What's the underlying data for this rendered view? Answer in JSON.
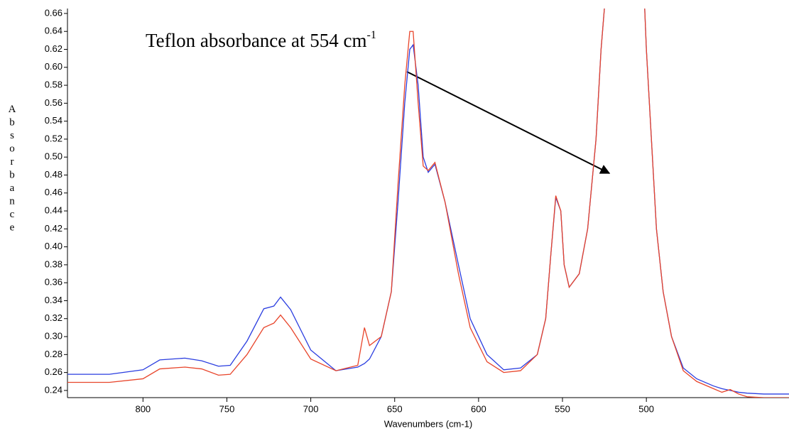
{
  "chart_data": {
    "type": "line",
    "annotation": "Teflon absorbance at 554 cm",
    "annotation_superscript": "-1",
    "xlabel": "Wavenumbers (cm-1)",
    "ylabel": "Absorbance",
    "x": [
      845,
      820,
      800,
      790,
      775,
      765,
      755,
      748,
      738,
      728,
      722,
      718,
      712,
      700,
      685,
      672,
      668,
      665,
      658,
      652,
      648,
      644,
      641,
      639,
      636,
      633,
      630,
      626,
      620,
      612,
      605,
      595,
      585,
      575,
      565,
      560,
      557,
      554,
      551,
      549,
      546,
      540,
      535,
      530,
      527,
      525,
      510,
      501,
      500,
      497,
      494,
      490,
      485,
      478,
      470,
      460,
      455,
      450,
      445,
      440,
      430,
      420,
      415
    ],
    "series": [
      {
        "color": "#2a3de0",
        "values": [
          0.258,
          0.258,
          0.263,
          0.274,
          0.276,
          0.273,
          0.267,
          0.268,
          0.295,
          0.331,
          0.334,
          0.344,
          0.33,
          0.285,
          0.262,
          0.266,
          0.27,
          0.275,
          0.3,
          0.35,
          0.45,
          0.56,
          0.62,
          0.625,
          0.58,
          0.5,
          0.483,
          0.492,
          0.45,
          0.38,
          0.32,
          0.28,
          0.263,
          0.265,
          0.28,
          0.32,
          0.39,
          0.455,
          0.44,
          0.38,
          0.355,
          0.37,
          0.42,
          0.52,
          0.62,
          0.666,
          null,
          0.666,
          0.62,
          0.52,
          0.42,
          0.35,
          0.3,
          0.265,
          0.253,
          0.245,
          0.242,
          0.24,
          0.238,
          0.237,
          0.236,
          0.236,
          0.236
        ]
      },
      {
        "color": "#e8442a",
        "values": [
          0.249,
          0.249,
          0.253,
          0.264,
          0.266,
          0.264,
          0.257,
          0.258,
          0.28,
          0.31,
          0.315,
          0.324,
          0.31,
          0.275,
          0.262,
          0.268,
          0.31,
          0.29,
          0.3,
          0.35,
          0.47,
          0.58,
          0.64,
          0.64,
          0.56,
          0.49,
          0.485,
          0.494,
          0.45,
          0.37,
          0.31,
          0.272,
          0.26,
          0.262,
          0.28,
          0.32,
          0.39,
          0.457,
          0.44,
          0.38,
          0.355,
          0.37,
          0.42,
          0.52,
          0.62,
          0.666,
          null,
          0.666,
          0.62,
          0.52,
          0.42,
          0.35,
          0.3,
          0.262,
          0.25,
          0.242,
          0.238,
          0.241,
          0.236,
          0.233,
          0.232,
          0.232,
          0.232
        ]
      }
    ],
    "xlim": [
      845,
      415
    ],
    "ylim": [
      0.232,
      0.6655
    ],
    "xticks": [
      800,
      750,
      700,
      650,
      600,
      550,
      500
    ],
    "yticks": [
      0.24,
      0.26,
      0.28,
      {
        "value": 0.3,
        "label": "0.30"
      },
      0.32,
      0.34,
      0.36,
      0.38,
      {
        "value": 0.4,
        "label": "0.40"
      },
      0.42,
      0.44,
      0.46,
      0.48,
      {
        "value": 0.5,
        "label": "0.50"
      },
      0.52,
      0.54,
      0.56,
      0.58,
      {
        "value": 0.6,
        "label": "0.60"
      },
      0.62,
      0.64,
      0.66
    ]
  }
}
